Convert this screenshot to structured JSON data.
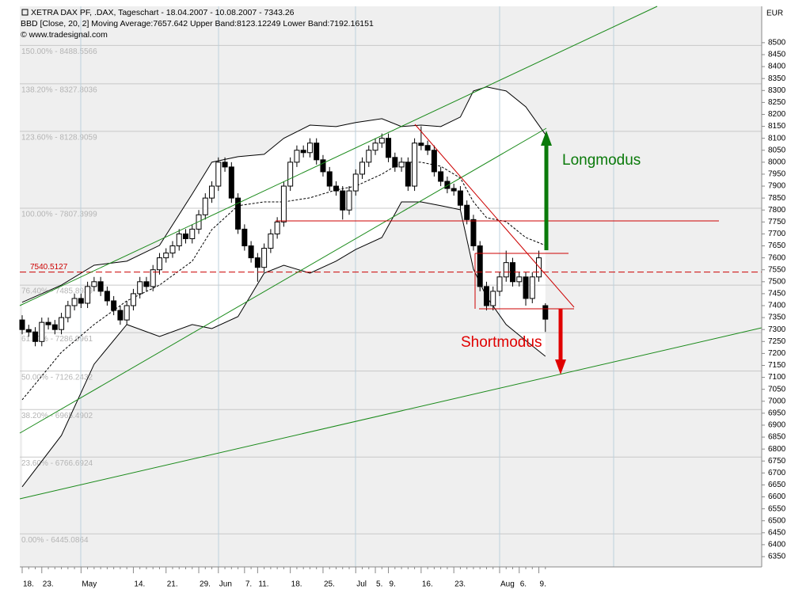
{
  "header": {
    "lines": [
      "XETRA DAX PF, .DAX, Tageschart - 18.04.2007 - 10.08.2007 - 7343.26",
      "BBD [Close, 20, 2] Moving Average:7657.642 Upper Band:8123.12249 Lower Band:7192.16151",
      "© www.tradesignal.com"
    ],
    "currency": "EUR"
  },
  "chart_data": {
    "type": "candlestick",
    "categories": [
      "18.",
      null,
      null,
      "23.",
      null,
      null,
      null,
      null,
      null,
      "May",
      null,
      null,
      null,
      null,
      null,
      null,
      null,
      "14.",
      null,
      null,
      null,
      null,
      "21.",
      null,
      null,
      null,
      null,
      "29.",
      null,
      null,
      "Jun",
      null,
      null,
      null,
      "7.",
      null,
      "11.",
      null,
      null,
      null,
      null,
      "18.",
      null,
      null,
      null,
      null,
      "25.",
      null,
      null,
      null,
      null,
      "Jul",
      null,
      null,
      "5.",
      null,
      "9.",
      null,
      null,
      null,
      null,
      "16.",
      null,
      null,
      null,
      null,
      "23.",
      null,
      null,
      null,
      null,
      null,
      null,
      "Aug",
      null,
      null,
      "6.",
      null,
      null,
      "9.",
      null
    ],
    "open": [
      7340,
      7300,
      7290,
      7250,
      7330,
      7320,
      7300,
      7350,
      7400,
      7430,
      7410,
      7480,
      7500,
      7460,
      7420,
      7380,
      7340,
      7400,
      7450,
      7500,
      7480,
      7550,
      7600,
      7620,
      7650,
      7700,
      7680,
      7720,
      7780,
      7850,
      7900,
      8000,
      7980,
      7850,
      7720,
      7650,
      7600,
      7560,
      7640,
      7700,
      7750,
      7900,
      8000,
      8050,
      8040,
      8080,
      8010,
      7960,
      7900,
      7880,
      7800,
      7880,
      7950,
      8000,
      8050,
      8080,
      8100,
      8020,
      7980,
      8000,
      7900,
      8080,
      8070,
      8050,
      7960,
      7920,
      7890,
      7880,
      7820,
      7760,
      7650,
      7480,
      7400,
      7460,
      7520,
      7580,
      7500,
      7520,
      7430,
      7520,
      7400
    ],
    "high": [
      7360,
      7320,
      7310,
      7350,
      7350,
      7340,
      7370,
      7420,
      7450,
      7450,
      7500,
      7520,
      7520,
      7480,
      7440,
      7400,
      7420,
      7470,
      7520,
      7520,
      7570,
      7620,
      7640,
      7670,
      7720,
      7720,
      7740,
      7800,
      7870,
      7920,
      8020,
      8020,
      8000,
      7870,
      7740,
      7670,
      7620,
      7660,
      7720,
      7770,
      7920,
      8020,
      8070,
      8070,
      8100,
      8100,
      8030,
      7980,
      7920,
      7900,
      7900,
      7970,
      8020,
      8070,
      8100,
      8120,
      8120,
      8040,
      8020,
      8020,
      8100,
      8150,
      8090,
      8070,
      7980,
      7940,
      7910,
      7900,
      7840,
      7780,
      7670,
      7500,
      7480,
      7540,
      7630,
      7600,
      7540,
      7540,
      7540,
      7630,
      7410
    ],
    "low": [
      7280,
      7270,
      7230,
      7230,
      7300,
      7280,
      7280,
      7330,
      7380,
      7390,
      7390,
      7460,
      7440,
      7400,
      7360,
      7320,
      7320,
      7380,
      7430,
      7460,
      7460,
      7530,
      7580,
      7600,
      7630,
      7660,
      7660,
      7700,
      7760,
      7830,
      7880,
      7960,
      7830,
      7700,
      7630,
      7580,
      7500,
      7540,
      7620,
      7680,
      7730,
      7880,
      7980,
      8020,
      8020,
      7990,
      7940,
      7880,
      7860,
      7760,
      7780,
      7860,
      7930,
      7980,
      8030,
      8060,
      8000,
      7960,
      7960,
      7880,
      7880,
      8050,
      8030,
      7940,
      7900,
      7870,
      7860,
      7800,
      7740,
      7630,
      7460,
      7380,
      7380,
      7440,
      7500,
      7480,
      7480,
      7400,
      7410,
      7500,
      7290
    ],
    "close": [
      7300,
      7290,
      7250,
      7330,
      7320,
      7300,
      7350,
      7400,
      7430,
      7410,
      7480,
      7500,
      7460,
      7420,
      7380,
      7340,
      7400,
      7450,
      7500,
      7480,
      7550,
      7600,
      7620,
      7650,
      7700,
      7680,
      7720,
      7780,
      7850,
      7900,
      8000,
      7980,
      7850,
      7720,
      7650,
      7600,
      7560,
      7640,
      7700,
      7750,
      7900,
      8000,
      8050,
      8040,
      8080,
      8010,
      7960,
      7900,
      7880,
      7800,
      7880,
      7950,
      8000,
      8050,
      8080,
      8100,
      8020,
      7980,
      8000,
      7900,
      8080,
      8070,
      8050,
      7960,
      7920,
      7890,
      7880,
      7820,
      7760,
      7650,
      7480,
      7400,
      7460,
      7520,
      7580,
      7500,
      7520,
      7430,
      7520,
      7600,
      7343.26
    ],
    "up_color": "#ffffff",
    "down_color": "#000000",
    "ylim": [
      6307,
      8652
    ],
    "yticks": [
      6350,
      6400,
      6450,
      6500,
      6550,
      6600,
      6650,
      6700,
      6750,
      6800,
      6850,
      6900,
      6950,
      7000,
      7050,
      7100,
      7150,
      7200,
      7250,
      7300,
      7350,
      7400,
      7450,
      7500,
      7550,
      7600,
      7650,
      7700,
      7750,
      7800,
      7850,
      7900,
      7950,
      8000,
      8050,
      8100,
      8150,
      8200,
      8250,
      8300,
      8350,
      8400,
      8450,
      8500
    ],
    "bollinger": {
      "x": [
        0,
        6,
        11,
        16,
        21,
        26,
        29,
        33,
        37,
        40,
        44,
        48,
        51,
        55,
        58,
        61,
        64,
        67,
        69,
        71,
        74,
        77,
        80
      ],
      "upper": [
        7414,
        7486,
        7569,
        7586,
        7652,
        7867,
        8000,
        8023,
        8033,
        8100,
        8155,
        8149,
        8166,
        8182,
        8149,
        8155,
        8149,
        8189,
        8298,
        8315,
        8298,
        8232,
        8116
      ],
      "middle": [
        7006,
        7205,
        7321,
        7420,
        7486,
        7586,
        7718,
        7818,
        7834,
        7834,
        7851,
        7884,
        7900,
        7950,
        8000,
        8000,
        7983,
        7934,
        7834,
        7768,
        7751,
        7685,
        7652
      ],
      "lower": [
        6642,
        6857,
        7155,
        7321,
        7271,
        7321,
        7304,
        7354,
        7536,
        7569,
        7536,
        7586,
        7635,
        7685,
        7834,
        7834,
        7818,
        7801,
        7553,
        7437,
        7321,
        7254,
        7188
      ]
    },
    "fib_levels": [
      {
        "value": 8488.5566,
        "label": "150.00% - 8488.5566"
      },
      {
        "value": 8327.8036,
        "label": "138.20% - 8327.8036"
      },
      {
        "value": 8128.9059,
        "label": "123.60% - 8128.9059"
      },
      {
        "value": 7807.3999,
        "label": "100.00% - 7807.3999"
      },
      {
        "value": 7485.8939,
        "label": "76.40% - 7485.8939"
      },
      {
        "value": 7286.9961,
        "label": "61.80% - 7286.9961"
      },
      {
        "value": 7126.2432,
        "label": "50.00% - 7126.2432"
      },
      {
        "value": 6965.4902,
        "label": "38.20% - 6965.4902"
      },
      {
        "value": 6766.6924,
        "label": "23.60% - 6766.6924"
      },
      {
        "value": 6445.0864,
        "label": "0.00% - 6445.0864"
      }
    ],
    "marker_line": {
      "value": 7540.5127,
      "label": "7540.5127",
      "color": "#cc0000"
    },
    "annotations": {
      "long": "Longmodus",
      "short": "Shortmodus"
    }
  }
}
